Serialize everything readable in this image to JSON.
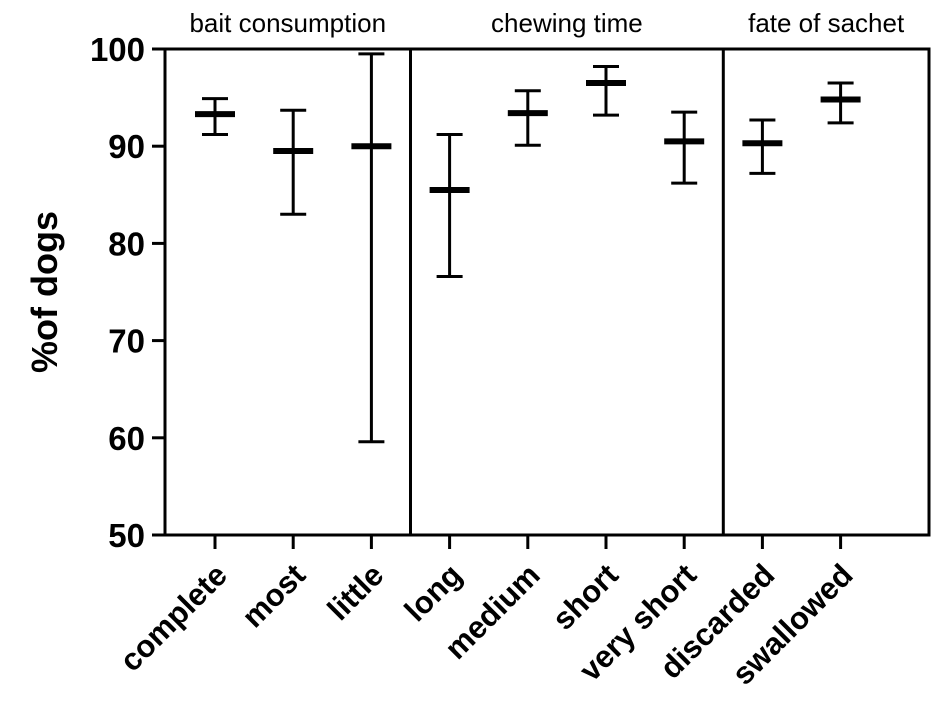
{
  "chart_data": {
    "type": "scatter",
    "ylabel": "%of dogs",
    "xlabel": "",
    "ylim": [
      50,
      100
    ],
    "yticks": [
      50,
      60,
      70,
      80,
      90,
      100
    ],
    "categories": [
      "complete",
      "most",
      "little",
      "long",
      "medium",
      "short",
      "very short",
      "discarded",
      "swallowed"
    ],
    "groups": [
      {
        "label": "bait consumption",
        "categories": [
          "complete",
          "most",
          "little"
        ]
      },
      {
        "label": "chewing time",
        "categories": [
          "long",
          "medium",
          "short",
          "very short"
        ]
      },
      {
        "label": "fate of sachet",
        "categories": [
          "discarded",
          "swallowed"
        ]
      }
    ],
    "points": [
      {
        "category": "complete",
        "mean": 93.3,
        "lower": 91.2,
        "upper": 94.9
      },
      {
        "category": "most",
        "mean": 89.5,
        "lower": 83.0,
        "upper": 93.7
      },
      {
        "category": "little",
        "mean": 90.0,
        "lower": 59.6,
        "upper": 99.5
      },
      {
        "category": "long",
        "mean": 85.5,
        "lower": 76.6,
        "upper": 91.2
      },
      {
        "category": "medium",
        "mean": 93.4,
        "lower": 90.1,
        "upper": 95.7
      },
      {
        "category": "short",
        "mean": 96.5,
        "lower": 93.2,
        "upper": 98.2
      },
      {
        "category": "very short",
        "mean": 90.5,
        "lower": 86.2,
        "upper": 93.5
      },
      {
        "category": "discarded",
        "mean": 90.3,
        "lower": 87.2,
        "upper": 92.7
      },
      {
        "category": "swallowed",
        "mean": 94.8,
        "lower": 92.4,
        "upper": 96.5
      }
    ],
    "grid": false,
    "legend": "none"
  }
}
